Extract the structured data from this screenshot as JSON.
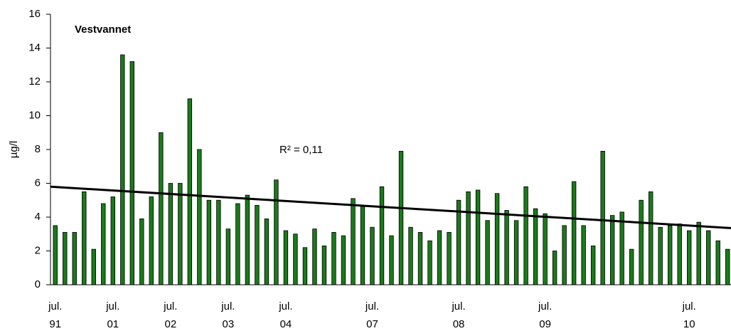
{
  "chart_data": {
    "type": "bar",
    "title": "Vestvannet",
    "y_label": "µg/l",
    "annotation": "R² = 0,11",
    "categories": [
      "jul.\n91",
      null,
      null,
      null,
      null,
      null,
      "jul.\n01",
      null,
      null,
      null,
      null,
      null,
      "jul.\n02",
      null,
      null,
      null,
      null,
      null,
      "jul.\n03",
      null,
      null,
      null,
      null,
      null,
      "jul.\n04",
      null,
      null,
      null,
      null,
      null,
      null,
      null,
      null,
      "jul.\n07",
      null,
      null,
      null,
      null,
      null,
      null,
      null,
      null,
      "jul.\n08",
      null,
      null,
      null,
      null,
      null,
      null,
      null,
      null,
      "jul.\n09",
      null,
      null,
      null,
      null,
      null,
      null,
      null,
      null,
      null,
      null,
      null,
      null,
      null,
      null,
      "jul.\n10",
      null,
      null,
      null,
      null
    ],
    "values": [
      3.5,
      3.1,
      3.1,
      5.5,
      2.1,
      4.8,
      5.2,
      13.6,
      13.2,
      3.9,
      5.2,
      9.0,
      6.0,
      6.0,
      11.0,
      8.0,
      5.0,
      5.0,
      3.3,
      4.8,
      5.3,
      4.7,
      3.9,
      6.2,
      3.2,
      3.0,
      2.2,
      3.3,
      2.3,
      3.1,
      2.9,
      5.1,
      4.7,
      3.4,
      5.8,
      2.9,
      7.9,
      3.4,
      3.1,
      2.6,
      3.2,
      3.1,
      5.0,
      5.5,
      5.6,
      3.8,
      5.4,
      4.4,
      3.8,
      5.8,
      4.5,
      4.2,
      2.0,
      3.5,
      6.1,
      3.5,
      2.3,
      7.9,
      4.1,
      4.3,
      2.1,
      5.0,
      5.5,
      3.4,
      3.5,
      3.6,
      3.2,
      3.7,
      3.2,
      2.6,
      2.1
    ],
    "color": "#1a7a1a",
    "trendline": [
      5.8,
      3.35
    ],
    "ylim": [
      0,
      16
    ],
    "yticks": [
      0,
      2,
      4,
      6,
      8,
      10,
      12,
      14,
      16
    ],
    "grid": false
  }
}
